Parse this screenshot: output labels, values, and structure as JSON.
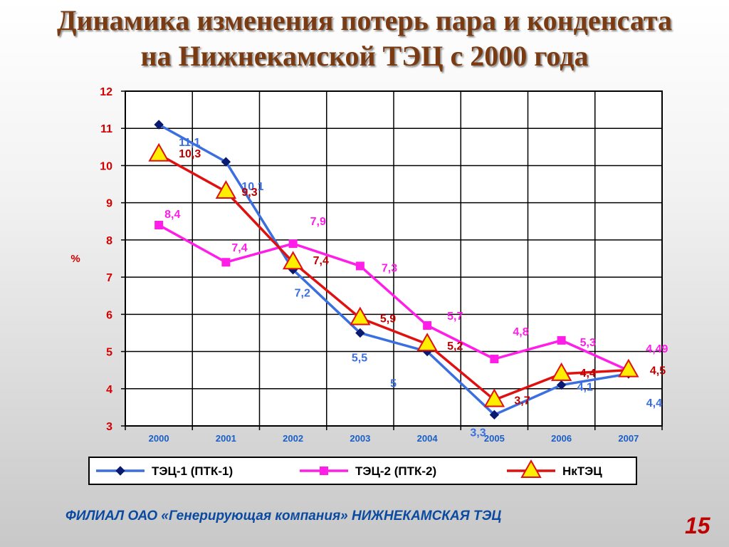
{
  "title": {
    "line1": "Динамика изменения потерь пара и конденсата",
    "line2": "на Нижнекамской ТЭЦ с 2000 года"
  },
  "footer": "ФИЛИАЛ ОАО «Генерирующая компания» НИЖНЕКАМСКАЯ ТЭЦ",
  "page_number": "15",
  "colors": {
    "title": "#7a3b12",
    "footer": "#0a4aa0",
    "page_number": "#c00000",
    "axis_labels": "#d40000",
    "x_tick_labels": "#1a5fc8"
  },
  "chart_data": {
    "type": "line",
    "title": "",
    "xlabel": "",
    "ylabel": "%",
    "ylim": [
      3,
      12
    ],
    "yticks": [
      3,
      4,
      5,
      6,
      7,
      8,
      9,
      10,
      11,
      12
    ],
    "categories": [
      "2000",
      "2001",
      "2002",
      "2003",
      "2004",
      "2005",
      "2006",
      "2007"
    ],
    "grid": true,
    "legend_position": "bottom",
    "series": [
      {
        "name": "ТЭЦ-1 (ПТК-1)",
        "color": "#3b6fe0",
        "marker_color": "#0a1a70",
        "marker": "diamond",
        "values": [
          11.1,
          10.1,
          7.2,
          5.5,
          5.0,
          3.3,
          4.1,
          4.4
        ],
        "labels": [
          "11,1",
          "10,1",
          "7,2",
          "5,5",
          "5",
          "3,3",
          "4,1",
          "4,4"
        ]
      },
      {
        "name": "ТЭЦ-2 (ПТК-2)",
        "color": "#ff1ee8",
        "marker_color": "#ff1ee8",
        "marker": "square",
        "values": [
          8.4,
          7.4,
          7.9,
          7.3,
          5.7,
          4.8,
          5.3,
          4.49
        ],
        "labels": [
          "8,4",
          "7,4",
          "7,9",
          "7,3",
          "5,7",
          "4,8",
          "5,3",
          "4,49"
        ]
      },
      {
        "name": "НкТЭЦ",
        "color": "#e01010",
        "marker_color": "#ffee00",
        "marker": "triangle",
        "values": [
          10.3,
          9.3,
          7.4,
          5.9,
          5.2,
          3.7,
          4.4,
          4.5
        ],
        "labels": [
          "10,3",
          "9,3",
          "7,4",
          "5,9",
          "5,2",
          "3,7",
          "4,4",
          "4,5"
        ]
      }
    ]
  }
}
